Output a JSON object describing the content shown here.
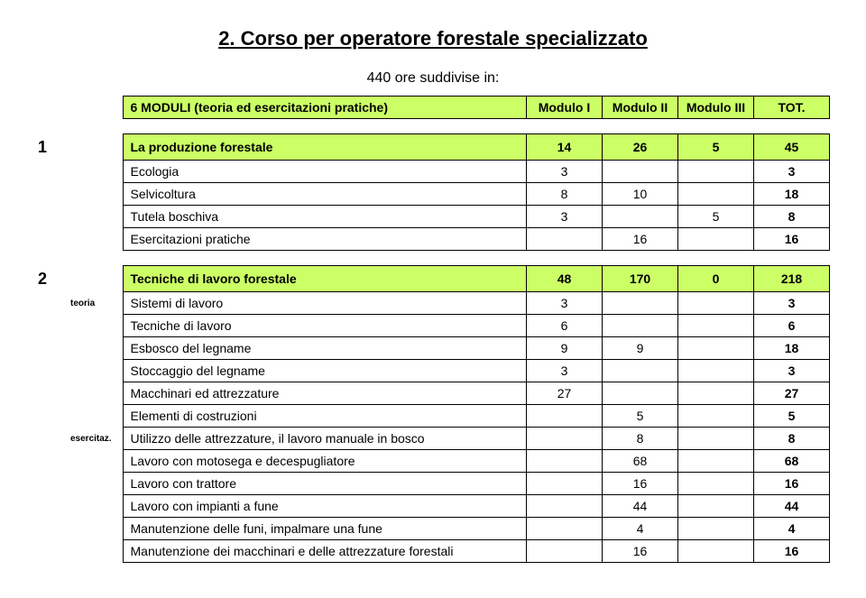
{
  "title": "2. Corso per operatore forestale specializzato",
  "subheading": "440 ore suddivise in:",
  "columns": {
    "desc": "6 MODULI (teoria ed esercitazioni pratiche)",
    "c1": "Modulo I",
    "c2": "Modulo II",
    "c3": "Modulo III",
    "c4": "TOT."
  },
  "colors": {
    "highlight": "#ccff66",
    "border": "#000000",
    "background": "#ffffff",
    "text": "#000000"
  },
  "block1": {
    "index": "1",
    "head": {
      "desc": "La produzione forestale",
      "c1": "14",
      "c2": "26",
      "c3": "5",
      "c4": "45"
    },
    "rows": [
      {
        "desc": "Ecologia",
        "c1": "3",
        "c2": "",
        "c3": "",
        "c4": "3"
      },
      {
        "desc": "Selvicoltura",
        "c1": "8",
        "c2": "10",
        "c3": "",
        "c4": "18"
      },
      {
        "desc": "Tutela boschiva",
        "c1": "3",
        "c2": "",
        "c3": "5",
        "c4": "8"
      },
      {
        "desc": "Esercitazioni pratiche",
        "c1": "",
        "c2": "16",
        "c3": "",
        "c4": "16"
      }
    ]
  },
  "block2": {
    "index": "2",
    "labels": {
      "teoria": "teoria",
      "esercitaz": "esercitaz."
    },
    "head": {
      "desc": "Tecniche di lavoro forestale",
      "c1": "48",
      "c2": "170",
      "c3": "0",
      "c4": "218"
    },
    "rows_teoria": [
      {
        "desc": "Sistemi di lavoro",
        "c1": "3",
        "c2": "",
        "c3": "",
        "c4": "3"
      },
      {
        "desc": "Tecniche di lavoro",
        "c1": "6",
        "c2": "",
        "c3": "",
        "c4": "6"
      },
      {
        "desc": "Esbosco del legname",
        "c1": "9",
        "c2": "9",
        "c3": "",
        "c4": "18"
      },
      {
        "desc": "Stoccaggio del legname",
        "c1": "3",
        "c2": "",
        "c3": "",
        "c4": "3"
      },
      {
        "desc": "Macchinari ed attrezzature",
        "c1": "27",
        "c2": "",
        "c3": "",
        "c4": "27"
      },
      {
        "desc": "Elementi di costruzioni",
        "c1": "",
        "c2": "5",
        "c3": "",
        "c4": "5"
      }
    ],
    "rows_eserc": [
      {
        "desc": "Utilizzo delle attrezzature, il lavoro manuale in bosco",
        "c1": "",
        "c2": "8",
        "c3": "",
        "c4": "8"
      },
      {
        "desc": "Lavoro con motosega e decespugliatore",
        "c1": "",
        "c2": "68",
        "c3": "",
        "c4": "68"
      },
      {
        "desc": "Lavoro con trattore",
        "c1": "",
        "c2": "16",
        "c3": "",
        "c4": "16"
      },
      {
        "desc": "Lavoro con impianti a fune",
        "c1": "",
        "c2": "44",
        "c3": "",
        "c4": "44"
      },
      {
        "desc": "Manutenzione delle funi, impalmare una fune",
        "c1": "",
        "c2": "4",
        "c3": "",
        "c4": "4"
      },
      {
        "desc": "Manutenzione dei macchinari e delle attrezzature forestali",
        "c1": "",
        "c2": "16",
        "c3": "",
        "c4": "16"
      }
    ]
  }
}
